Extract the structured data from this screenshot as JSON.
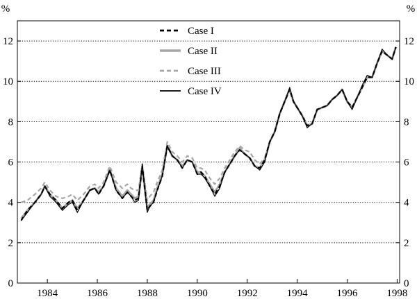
{
  "chart_data": {
    "type": "line",
    "unit_left": "%",
    "unit_right": "%",
    "xlim": [
      1982.8,
      1998.1
    ],
    "ylim": [
      0,
      13
    ],
    "x_ticks": [
      1984,
      1986,
      1988,
      1990,
      1992,
      1994,
      1996,
      1998
    ],
    "x_tick_labels": [
      "1984",
      "1986",
      "1988",
      "1990",
      "1992",
      "1994",
      "1996",
      "1998"
    ],
    "y_ticks": [
      0,
      2,
      4,
      6,
      8,
      10,
      12
    ],
    "y_tick_labels": [
      "0",
      "2",
      "4",
      "6",
      "8",
      "10",
      "12"
    ],
    "gridlines": "horizontal dotted",
    "legend_position": "top-center",
    "series": [
      {
        "name": "Case I",
        "color": "#000000",
        "style": "dashed",
        "x": [
          1982.95,
          1983.2,
          1983.5,
          1983.75,
          1983.9,
          1984.1,
          1984.35,
          1984.6,
          1984.85,
          1985.0,
          1985.2,
          1985.45,
          1985.7,
          1985.9,
          1986.05,
          1986.25,
          1986.5,
          1986.75,
          1987.0,
          1987.2,
          1987.35,
          1987.5,
          1987.65,
          1987.8,
          1988.0,
          1988.1,
          1988.25,
          1988.4,
          1988.6,
          1988.8,
          1989.0,
          1989.2,
          1989.4,
          1989.6,
          1989.8,
          1990.0,
          1990.15,
          1990.3,
          1990.5,
          1990.7,
          1990.9,
          1991.1,
          1991.3,
          1991.5,
          1991.7,
          1991.9,
          1992.1,
          1992.3,
          1992.5,
          1992.7,
          1992.9,
          1993.1,
          1993.3,
          1993.5,
          1993.7,
          1993.85,
          1994.0,
          1994.2,
          1994.4,
          1994.6,
          1994.8,
          1995.0,
          1995.2,
          1995.4,
          1995.6,
          1995.8,
          1996.0,
          1996.2,
          1996.4,
          1996.6,
          1996.8,
          1997.0,
          1997.2,
          1997.4,
          1997.6,
          1997.8,
          1997.95
        ],
        "values": [
          3.1,
          3.6,
          4.0,
          4.4,
          4.8,
          4.4,
          4.1,
          3.7,
          4.0,
          4.1,
          3.6,
          4.1,
          4.6,
          4.7,
          4.4,
          4.8,
          5.6,
          4.6,
          4.2,
          4.5,
          4.3,
          4.1,
          4.2,
          5.8,
          3.6,
          3.8,
          4.0,
          4.6,
          5.3,
          6.8,
          6.3,
          6.1,
          5.7,
          6.1,
          6.0,
          5.4,
          5.5,
          5.3,
          4.8,
          4.4,
          4.8,
          5.5,
          5.9,
          6.3,
          6.6,
          6.4,
          6.2,
          5.8,
          5.7,
          6.1,
          7.0,
          7.5,
          8.4,
          9.0,
          9.6,
          9.0,
          8.7,
          8.3,
          7.8,
          7.9,
          8.6,
          8.7,
          8.8,
          9.1,
          9.3,
          9.6,
          9.0,
          8.7,
          9.2,
          9.7,
          10.2,
          10.2,
          10.9,
          11.5,
          11.3,
          11.1,
          11.7
        ]
      },
      {
        "name": "Case II",
        "color": "#a6a6a6",
        "style": "solid",
        "x": [
          1982.95,
          1983.2,
          1983.5,
          1983.75,
          1983.9,
          1984.1,
          1984.35,
          1984.6,
          1984.85,
          1985.0,
          1985.2,
          1985.45,
          1985.7,
          1985.9,
          1986.05,
          1986.25,
          1986.5,
          1986.75,
          1987.0,
          1987.2,
          1987.35,
          1987.5,
          1987.65,
          1987.8,
          1988.0,
          1988.1,
          1988.25,
          1988.4,
          1988.6,
          1988.8,
          1989.0,
          1989.2,
          1989.4,
          1989.6,
          1989.8,
          1990.0,
          1990.15,
          1990.3,
          1990.5,
          1990.7,
          1990.9,
          1991.1,
          1991.3,
          1991.5,
          1991.7,
          1991.9,
          1992.1,
          1992.3,
          1992.5,
          1992.7,
          1992.9,
          1993.1,
          1993.3,
          1993.5,
          1993.7,
          1993.85,
          1994.0,
          1994.2,
          1994.4,
          1994.6,
          1994.8,
          1995.0,
          1995.2,
          1995.4,
          1995.6,
          1995.8,
          1996.0,
          1996.2,
          1996.4,
          1996.6,
          1996.8,
          1997.0,
          1997.2,
          1997.4,
          1997.6,
          1997.8,
          1997.95
        ],
        "values": [
          3.2,
          3.6,
          4.0,
          4.4,
          4.8,
          4.4,
          4.1,
          3.7,
          4.0,
          4.1,
          3.7,
          4.1,
          4.6,
          4.7,
          4.5,
          4.8,
          5.6,
          4.7,
          4.3,
          4.6,
          4.4,
          4.2,
          4.3,
          5.7,
          3.7,
          3.9,
          4.1,
          4.7,
          5.4,
          6.8,
          6.3,
          6.1,
          5.8,
          6.1,
          6.0,
          5.5,
          5.5,
          5.3,
          4.9,
          4.5,
          4.9,
          5.5,
          5.9,
          6.3,
          6.7,
          6.4,
          6.2,
          5.8,
          5.7,
          6.1,
          7.0,
          7.5,
          8.4,
          9.0,
          9.6,
          9.0,
          8.7,
          8.3,
          7.8,
          7.9,
          8.6,
          8.7,
          8.8,
          9.1,
          9.3,
          9.6,
          9.0,
          8.7,
          9.2,
          9.7,
          10.2,
          10.2,
          10.9,
          11.5,
          11.3,
          11.1,
          11.7
        ]
      },
      {
        "name": "Case III",
        "color": "#a6a6a6",
        "style": "dashed",
        "x": [
          1982.95,
          1983.2,
          1983.5,
          1983.75,
          1983.9,
          1984.1,
          1984.35,
          1984.6,
          1984.85,
          1985.0,
          1985.2,
          1985.45,
          1985.7,
          1985.9,
          1986.05,
          1986.25,
          1986.5,
          1986.75,
          1987.0,
          1987.2,
          1987.35,
          1987.5,
          1987.65,
          1987.8,
          1988.0,
          1988.1,
          1988.25,
          1988.4,
          1988.6,
          1988.8,
          1989.0,
          1989.2,
          1989.4,
          1989.6,
          1989.8,
          1990.0,
          1990.15,
          1990.3,
          1990.5,
          1990.7,
          1990.9,
          1991.1,
          1991.3,
          1991.5,
          1991.7,
          1991.9,
          1992.1,
          1992.3,
          1992.5,
          1992.7,
          1992.9,
          1993.1,
          1993.3,
          1993.5,
          1993.7,
          1993.85,
          1994.0,
          1994.2,
          1994.4,
          1994.6,
          1994.8,
          1995.0,
          1995.2,
          1995.4,
          1995.6,
          1995.8,
          1996.0,
          1996.2,
          1996.4,
          1996.6,
          1996.8,
          1997.0,
          1997.2,
          1997.4,
          1997.6,
          1997.8,
          1997.95
        ],
        "values": [
          4.0,
          4.1,
          4.4,
          4.7,
          5.0,
          4.6,
          4.3,
          4.2,
          4.3,
          4.4,
          4.1,
          4.4,
          4.8,
          4.9,
          4.7,
          5.0,
          5.8,
          5.0,
          4.7,
          4.9,
          4.7,
          4.6,
          4.6,
          5.9,
          4.1,
          4.3,
          4.5,
          5.0,
          5.6,
          7.0,
          6.5,
          6.3,
          6.0,
          6.3,
          6.2,
          5.7,
          5.7,
          5.6,
          5.2,
          4.9,
          5.2,
          5.7,
          6.1,
          6.5,
          6.8,
          6.6,
          6.5,
          6.1,
          5.9,
          6.2,
          7.0,
          7.5,
          8.4,
          9.0,
          9.6,
          9.0,
          8.7,
          8.3,
          7.8,
          7.9,
          8.6,
          8.7,
          8.8,
          9.1,
          9.3,
          9.6,
          9.0,
          8.7,
          9.2,
          9.7,
          10.2,
          10.2,
          10.9,
          11.5,
          11.3,
          11.1,
          11.7
        ]
      },
      {
        "name": "Case IV",
        "color": "#000000",
        "style": "solid-thin",
        "x": [
          1982.95,
          1983.2,
          1983.5,
          1983.75,
          1983.9,
          1984.1,
          1984.35,
          1984.6,
          1984.85,
          1985.0,
          1985.2,
          1985.45,
          1985.7,
          1985.9,
          1986.05,
          1986.25,
          1986.5,
          1986.75,
          1987.0,
          1987.2,
          1987.35,
          1987.5,
          1987.65,
          1987.8,
          1988.0,
          1988.1,
          1988.25,
          1988.4,
          1988.6,
          1988.8,
          1989.0,
          1989.2,
          1989.4,
          1989.6,
          1989.8,
          1990.0,
          1990.15,
          1990.3,
          1990.5,
          1990.7,
          1990.9,
          1991.1,
          1991.3,
          1991.5,
          1991.7,
          1991.9,
          1992.1,
          1992.3,
          1992.5,
          1992.7,
          1992.9,
          1993.1,
          1993.3,
          1993.5,
          1993.7,
          1993.85,
          1994.0,
          1994.2,
          1994.4,
          1994.6,
          1994.8,
          1995.0,
          1995.2,
          1995.4,
          1995.6,
          1995.8,
          1996.0,
          1996.2,
          1996.4,
          1996.6,
          1996.8,
          1997.0,
          1997.2,
          1997.4,
          1997.6,
          1997.8,
          1997.95
        ],
        "values": [
          3.1,
          3.5,
          4.0,
          4.4,
          4.8,
          4.3,
          4.0,
          3.6,
          3.9,
          4.0,
          3.5,
          4.1,
          4.6,
          4.7,
          4.4,
          4.8,
          5.6,
          4.6,
          4.2,
          4.5,
          4.3,
          4.0,
          4.1,
          5.9,
          3.5,
          3.8,
          4.0,
          4.6,
          5.3,
          6.8,
          6.3,
          6.1,
          5.7,
          6.1,
          6.0,
          5.4,
          5.4,
          5.2,
          4.8,
          4.3,
          4.7,
          5.5,
          5.9,
          6.3,
          6.6,
          6.4,
          6.2,
          5.8,
          5.6,
          6.0,
          7.0,
          7.5,
          8.4,
          9.0,
          9.7,
          9.0,
          8.7,
          8.3,
          7.7,
          7.9,
          8.6,
          8.7,
          8.8,
          9.1,
          9.3,
          9.6,
          9.0,
          8.6,
          9.2,
          9.8,
          10.3,
          10.2,
          10.9,
          11.6,
          11.3,
          11.1,
          11.7
        ]
      }
    ]
  }
}
